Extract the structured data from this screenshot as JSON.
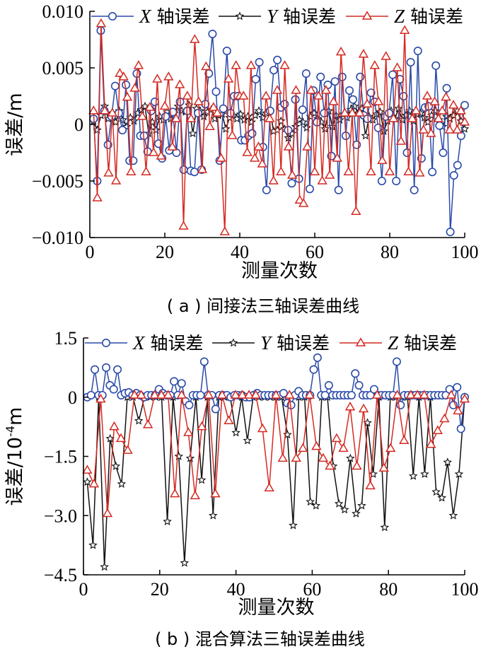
{
  "chart_data": [
    {
      "type": "line",
      "caption": "( a ) 间接法三轴误差曲线",
      "xlabel": "测量次数",
      "ylabel": "误差/m",
      "xlim": [
        0,
        100
      ],
      "ylim": [
        -0.01,
        0.01
      ],
      "xticks": [
        0,
        20,
        40,
        60,
        80,
        100
      ],
      "yticks": [
        -0.01,
        -0.005,
        0,
        0.005,
        0.01
      ],
      "xtick_labels": [
        "0",
        "20",
        "40",
        "60",
        "80",
        "100"
      ],
      "ytick_labels": [
        "−0.010",
        "−0.005",
        "0",
        "0.005",
        "0.010"
      ],
      "grid": false,
      "legend_position": "top",
      "series": [
        {
          "name": "X 轴误差",
          "legend_italic": "X",
          "legend_rest": "轴误差",
          "color": "#2a4aa8",
          "marker": "circle",
          "values": [
            0.0005,
            -0.005,
            0.0083,
            0.0012,
            -0.0018,
            0.0007,
            0.0034,
            0.001,
            -0.0005,
            0.0035,
            -0.0032,
            -0.0032,
            0.0045,
            -0.001,
            -0.001,
            -0.0024,
            0.0012,
            0.002,
            -0.0017,
            -0.003,
            0.0007,
            -0.0023,
            0.0011,
            -0.0025,
            0.002,
            -0.004,
            0.0012,
            -0.0041,
            -0.0042,
            0.001,
            -0.004,
            0.0018,
            0.0045,
            0.008,
            0.0029,
            -0.0032,
            0.0014,
            0.0065,
            0.001,
            0.0025,
            0.0025,
            -0.0014,
            -0.0014,
            -0.001,
            -0.0008,
            0.004,
            0.0055,
            -0.002,
            -0.0058,
            0.0012,
            0.0048,
            0.0057,
            0.0015,
            0.0018,
            -0.0005,
            -0.0052,
            0.0022,
            -0.0048,
            0.0013,
            0.0045,
            -0.0057,
            0.003,
            0.0002,
            0.0042,
            0.001,
            0.0035,
            -0.0028,
            0.0038,
            -0.0058,
            0.0042,
            -0.001,
            0.003,
            0.0022,
            -0.0018,
            0.0042,
            0.0008,
            0.0005,
            0.0028,
            0.002,
            -0.0003,
            -0.005,
            0.0007,
            0.001,
            0.0044,
            -0.005,
            0.004,
            0.0025,
            -0.0025,
            0.0055,
            -0.0058,
            0.0065,
            -0.003,
            0.0015,
            0.0016,
            -0.0042,
            0.0052,
            -0.0001,
            -0.0025,
            0.0032,
            -0.0095,
            -0.0045,
            -0.0036,
            -0.001,
            0.0017
          ]
        },
        {
          "name": "Y 轴误差",
          "legend_italic": "Y",
          "legend_rest": "轴误差",
          "color": "#111111",
          "marker": "star",
          "values": [
            0.0003,
            -0.0005,
            0.0008,
            0.0016,
            0.0005,
            0.001,
            0.0002,
            0.0012,
            0.0004,
            -0.0002,
            0.0006,
            0.0003,
            0.001,
            0.0013,
            0.0016,
            -0.0008,
            0.0002,
            -0.0005,
            0.0007,
            0.0004,
            0.0011,
            0.0005,
            0.001,
            0.0016,
            0.0012,
            0.0011,
            0.0017,
            -0.0008,
            0.0014,
            0.0012,
            0.0007,
            0.0011,
            0.0013,
            0.0005,
            0.0008,
            0.0009,
            -0.0004,
            0.0006,
            0.0008,
            0.0005,
            0.0009,
            0.0004,
            0.0007,
            0.0002,
            0.0008,
            0.0012,
            0.0006,
            0.001,
            0.0012,
            -0.0006,
            -0.0005,
            0.0003,
            -0.0004,
            -0.0012,
            -0.0008,
            -0.0002,
            0.0004,
            0.0002,
            -0.0003,
            0.0007,
            0.001,
            0.0005,
            0.0002,
            -0.0004,
            0.0012,
            -0.0002,
            0.0008,
            0.0004,
            0.0009,
            0.0006,
            0.0013,
            0.0016,
            0.001,
            0.0014,
            -0.001,
            0.0007,
            0.0004,
            0.0009,
            0.0011,
            -0.0006,
            0.0003,
            0.0012,
            0.0005,
            0.0014,
            0.0004,
            0.0008,
            0.0012,
            0.0003,
            0.0009,
            0.001,
            0.0006,
            0.0002,
            0.0008,
            0.0012,
            0.0004,
            -0.0002,
            0.0007,
            0.0005,
            0.0008,
            0.0012,
            0.0003,
            -0.0004
          ]
        },
        {
          "name": "Z 轴误差",
          "legend_italic": "Z",
          "legend_rest": "轴误差",
          "color": "#d42a22",
          "marker": "triangle",
          "values": [
            0.0012,
            -0.0065,
            0.0089,
            0.0012,
            -0.0043,
            0.001,
            -0.005,
            0.0045,
            0.0042,
            0.0024,
            -0.0042,
            0.0032,
            0.0052,
            0.0007,
            -0.0042,
            0.0015,
            -0.0025,
            0.004,
            -0.0028,
            0.0016,
            0.0042,
            -0.002,
            0.0005,
            0.0035,
            -0.009,
            0.0025,
            0.0005,
            0.0075,
            0.002,
            -0.004,
            0.0051,
            -0.0002,
            0.0015,
            0.001,
            -0.003,
            -0.0095,
            0.004,
            -0.001,
            0.0052,
            0.0025,
            0.0025,
            -0.0025,
            0.0052,
            -0.003,
            -0.002,
            -0.0035,
            0.0025,
            0.0005,
            -0.005,
            0.003,
            -0.0042,
            0.0052,
            -0.002,
            -0.0045,
            0.003,
            -0.0067,
            -0.007,
            -0.002,
            0.003,
            -0.0042,
            0.0025,
            -0.005,
            0.003,
            -0.0045,
            0.002,
            -0.003,
            0.0064,
            0.001,
            -0.0042,
            0.001,
            -0.0077,
            0.001,
            0.0062,
            0.0018,
            -0.0042,
            0.0052,
            0.002,
            -0.0032,
            0.006,
            -0.0042,
            0.0005,
            0.005,
            -0.0015,
            0.0083,
            -0.0042,
            0.0005,
            0.0012,
            -0.0043,
            -0.0005,
            0.0025,
            -0.0008,
            0.002,
            0.0005,
            0.0012,
            0.0024,
            -0.0005,
            0.0017,
            -0.0005,
            0.0012,
            0.0002
          ]
        }
      ]
    },
    {
      "type": "line",
      "caption": "( b ) 混合算法三轴误差曲线",
      "xlabel": "测量次数",
      "ylabel_main": "误差/10",
      "ylabel_exp": "-4",
      "ylabel_unit": "m",
      "xlim": [
        0,
        100
      ],
      "ylim": [
        -4.5,
        1.5
      ],
      "xticks": [
        0,
        20,
        40,
        60,
        80,
        100
      ],
      "yticks": [
        -4.5,
        -3.0,
        -1.5,
        0,
        1.5
      ],
      "xtick_labels": [
        "0",
        "20",
        "40",
        "60",
        "80",
        "100"
      ],
      "ytick_labels": [
        "−4.5",
        "−3.0",
        "−1.5",
        "0",
        "1.5"
      ],
      "grid": false,
      "legend_position": "top",
      "series": [
        {
          "name": "X 轴误差",
          "legend_italic": "X",
          "legend_rest": "轴误差",
          "color": "#2a4aa8",
          "marker": "circle",
          "values": [
            0.0,
            0.05,
            0.7,
            0.05,
            0.05,
            0.75,
            0.3,
            0.2,
            0.7,
            0.05,
            0.1,
            0.12,
            0.05,
            0.1,
            0.05,
            0.0,
            0.05,
            0.05,
            0.05,
            0.2,
            0.1,
            0.05,
            0.05,
            0.4,
            0.05,
            0.35,
            -0.1,
            -0.2,
            0.05,
            0.05,
            0.05,
            0.9,
            0.05,
            0.05,
            -0.3,
            0.05,
            0.05,
            0.05,
            0.0,
            0.05,
            0.05,
            0.05,
            0.0,
            0.0,
            0.05,
            0.1,
            0.05,
            0.05,
            0.05,
            0.05,
            0.05,
            0.05,
            0.1,
            -0.15,
            -0.2,
            0.05,
            0.15,
            0.05,
            0.05,
            0.05,
            0.7,
            1.0,
            0.05,
            0.05,
            0.3,
            0.05,
            0.05,
            0.05,
            0.05,
            0.05,
            0.05,
            0.6,
            0.3,
            0.05,
            0.05,
            0.05,
            0.2,
            0.05,
            0.05,
            0.05,
            0.05,
            0.05,
            0.9,
            -0.2,
            0.05,
            0.05,
            0.05,
            0.05,
            0.05,
            0.05,
            0.05,
            0.05,
            0.05,
            0.05,
            0.05,
            0.05,
            0.2,
            -0.2,
            0.25,
            -0.8,
            0.0
          ]
        },
        {
          "name": "Y 轴误差",
          "legend_italic": "Y",
          "legend_rest": "轴误差",
          "color": "#111111",
          "marker": "star",
          "values": [
            -2.15,
            -3.75,
            0.0,
            -4.3,
            -1.05,
            -1.75,
            -2.2,
            0.0,
            0.0,
            -0.6,
            0.0,
            0.0,
            0.0,
            0.0,
            -3.15,
            0.0,
            -1.5,
            -4.2,
            -1.55,
            0.0,
            -2.1,
            0.0,
            -3.0,
            0.0,
            0.0,
            0.0,
            -0.9,
            0.0,
            -1.1,
            0.0,
            0.0,
            0.0,
            0.0,
            0.0,
            0.0,
            -0.95,
            -3.25,
            0.0,
            0.0,
            -2.65,
            -2.75,
            0.0,
            0.0,
            -1.75,
            -2.7,
            -2.85,
            -1.55,
            -2.95,
            -2.75,
            -0.65,
            -1.95,
            0.0,
            -3.3,
            0.0,
            0.0,
            0.0,
            0.0,
            -2.0,
            0.0,
            -1.95,
            0.0,
            -2.4,
            -2.55,
            -1.65,
            -3.0,
            -1.95,
            0.0
          ]
        },
        {
          "name": "Z 轴误差",
          "legend_italic": "Z",
          "legend_rest": "轴误差",
          "color": "#d42a22",
          "marker": "triangle",
          "values": [
            -1.85,
            -2.2,
            -0.05,
            -2.95,
            -0.75,
            -1.05,
            -1.35,
            0.05,
            0.05,
            -0.7,
            0.05,
            0.05,
            0.05,
            -2.45,
            0.05,
            -0.9,
            -2.5,
            -0.75,
            0.05,
            -2.45,
            0.05,
            -0.6,
            0.05,
            0.05,
            0.05,
            0.05,
            -0.8,
            -2.3,
            0.05,
            -1.55,
            0.05,
            -1.55,
            -1.3,
            0.05,
            -1.25,
            -1.55,
            -1.75,
            -1.05,
            -1.3,
            -0.25,
            -1.75,
            -0.3,
            -2.25,
            0.05,
            -1.8,
            -1.3,
            0.05,
            -1.1,
            0.05,
            0.05,
            0.05,
            -1.2,
            -0.85,
            -0.55,
            0.05,
            -0.35,
            -0.05
          ]
        }
      ]
    }
  ]
}
